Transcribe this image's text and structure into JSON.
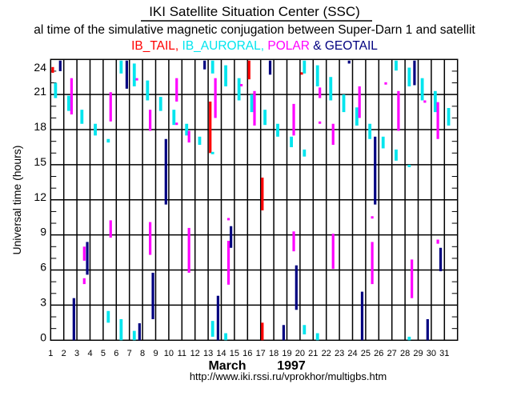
{
  "header": {
    "title": "IKI Satellite Situation Center (SSC)",
    "subtitle": "al time of the simulative magnetic conjugation between Super-Darn 1 and satellit"
  },
  "legend": [
    {
      "label": "IB_TAIL,",
      "color": "#ff0000"
    },
    {
      "label": "IB_AURORAL,",
      "color": "#00e5ee"
    },
    {
      "label": "POLAR",
      "color": "#ff00ff"
    },
    {
      "label": "& GEOTAIL",
      "color": "#000080"
    }
  ],
  "footer": {
    "month": "March",
    "year": "1997",
    "url": "http://www.iki.rssi.ru/vprokhor/multigbs.htm"
  },
  "chart_data": {
    "type": "bar",
    "subtype": "floating-range",
    "ylabel": "Universal time  (hours)",
    "xlabel": "March 1997",
    "xlim": [
      1,
      32
    ],
    "ylim": [
      0,
      24
    ],
    "x_ticks": [
      "1",
      "2",
      "3",
      "4",
      "5",
      "6",
      "7",
      "8",
      "9",
      "10",
      "11",
      "12",
      "13",
      "14",
      "15",
      "16",
      "17",
      "18",
      "19",
      "20",
      "21",
      "22",
      "23",
      "24",
      "25",
      "26",
      "27",
      "28",
      "29",
      "30",
      "31"
    ],
    "y_ticks": [
      "0",
      "3",
      "6",
      "9",
      "12",
      "15",
      "18",
      "21",
      "24"
    ],
    "grid": true,
    "series": [
      {
        "name": "IB_TAIL",
        "color": "#ff0000",
        "segments": [
          [
            1.16,
            22.86,
            23.35
          ],
          [
            13.16,
            16.0,
            20.4
          ],
          [
            16.12,
            22.3,
            23.9
          ],
          [
            17.13,
            11.1,
            13.9
          ],
          [
            17.13,
            0,
            1.5
          ],
          [
            20.13,
            22.7,
            22.9
          ]
        ]
      },
      {
        "name": "IB_AURORAL",
        "color": "#00e5ee",
        "segments": [
          [
            1.37,
            20.7,
            22.0
          ],
          [
            2.38,
            19.6,
            20.9
          ],
          [
            3.38,
            18.5,
            19.7
          ],
          [
            4.4,
            17.5,
            18.5
          ],
          [
            5.39,
            16.9,
            17.2
          ],
          [
            5.39,
            1.5,
            2.5
          ],
          [
            6.37,
            22.8,
            23.9
          ],
          [
            6.37,
            0,
            1.8
          ],
          [
            7.37,
            21.7,
            23.65
          ],
          [
            7.37,
            0,
            0.8
          ],
          [
            8.38,
            20.5,
            22.2
          ],
          [
            9.38,
            19.6,
            20.8
          ],
          [
            10.39,
            18.4,
            19.7
          ],
          [
            11.36,
            17.5,
            18.5
          ],
          [
            12.35,
            16.7,
            17.4
          ],
          [
            13.34,
            22.8,
            23.9
          ],
          [
            13.34,
            15.9,
            16.1
          ],
          [
            13.34,
            0.3,
            1.65
          ],
          [
            14.34,
            21.7,
            23.5
          ],
          [
            14.34,
            0,
            0.6
          ],
          [
            15.35,
            20.5,
            22.4
          ],
          [
            16.32,
            19.5,
            21.0
          ],
          [
            17.33,
            18.4,
            19.7
          ],
          [
            18.3,
            17.4,
            18.5
          ],
          [
            19.34,
            16.5,
            17.4
          ],
          [
            20.33,
            22.8,
            23.9
          ],
          [
            20.33,
            15.7,
            16.3
          ],
          [
            20.33,
            0.5,
            1.3
          ],
          [
            21.33,
            21.7,
            23.5
          ],
          [
            21.33,
            0,
            0.6
          ],
          [
            22.34,
            20.5,
            22.5
          ],
          [
            23.33,
            19.5,
            21.0
          ],
          [
            24.33,
            18.35,
            19.9
          ],
          [
            25.32,
            17.2,
            18.5
          ],
          [
            26.33,
            16.4,
            17.4
          ],
          [
            27.32,
            23.05,
            23.9
          ],
          [
            27.32,
            15.35,
            16.3
          ],
          [
            28.32,
            21.7,
            23.3
          ],
          [
            28.32,
            14.8,
            15.0
          ],
          [
            28.32,
            0,
            0.3
          ],
          [
            29.31,
            20.5,
            22.4
          ],
          [
            30.3,
            19.5,
            21.3
          ],
          [
            31.32,
            18.35,
            19.85
          ]
        ]
      },
      {
        "name": "POLAR",
        "color": "#ff00ff",
        "segments": [
          [
            2.59,
            19.3,
            22.4
          ],
          [
            3.56,
            6.8,
            8.0
          ],
          [
            3.56,
            4.8,
            5.3
          ],
          [
            5.57,
            18.7,
            21.2
          ],
          [
            5.57,
            8.77,
            10.25
          ],
          [
            7.57,
            22.2,
            22.4
          ],
          [
            8.58,
            17.9,
            19.7
          ],
          [
            8.58,
            7.3,
            10.1
          ],
          [
            10.6,
            20.4,
            22.4
          ],
          [
            10.6,
            18.4,
            18.6
          ],
          [
            11.54,
            16.9,
            17.9
          ],
          [
            11.54,
            5.77,
            9.6
          ],
          [
            13.55,
            19.0,
            22.4
          ],
          [
            14.55,
            10.25,
            10.45
          ],
          [
            14.55,
            4.75,
            8.5
          ],
          [
            15.53,
            21.7,
            21.9
          ],
          [
            16.53,
            18.35,
            21.3
          ],
          [
            19.52,
            17.5,
            20.2
          ],
          [
            19.52,
            7.6,
            9.3
          ],
          [
            21.51,
            20.7,
            21.6
          ],
          [
            21.51,
            18.5,
            18.7
          ],
          [
            22.52,
            16.7,
            18.5
          ],
          [
            22.52,
            6.1,
            9.1
          ],
          [
            24.53,
            19.0,
            21.7
          ],
          [
            25.5,
            10.4,
            10.6
          ],
          [
            25.5,
            4.8,
            8.4
          ],
          [
            26.53,
            21.85,
            22.05
          ],
          [
            27.5,
            17.9,
            21.3
          ],
          [
            28.52,
            3.6,
            6.9
          ],
          [
            29.51,
            20.3,
            20.5
          ],
          [
            30.5,
            17.2,
            20.35
          ],
          [
            30.5,
            8.25,
            8.6
          ]
        ]
      },
      {
        "name": "GEOTAIL",
        "color": "#000080",
        "segments": [
          [
            1.73,
            23.0,
            23.9
          ],
          [
            2.77,
            0,
            3.6
          ],
          [
            3.79,
            5.6,
            8.4
          ],
          [
            6.8,
            21.5,
            23.9
          ],
          [
            7.77,
            0,
            1.45
          ],
          [
            8.79,
            1.8,
            5.77
          ],
          [
            9.78,
            11.6,
            17.2
          ],
          [
            12.73,
            23.15,
            23.9
          ],
          [
            13.75,
            0,
            3.8
          ],
          [
            14.74,
            7.9,
            9.75
          ],
          [
            17.72,
            22.7,
            23.9
          ],
          [
            18.75,
            0,
            1.3
          ],
          [
            19.72,
            2.6,
            6.4
          ],
          [
            23.74,
            23.65,
            23.9
          ],
          [
            24.73,
            0,
            4.15
          ],
          [
            25.72,
            11.6,
            17.4
          ],
          [
            28.72,
            21.8,
            23.9
          ],
          [
            29.72,
            0,
            1.8
          ],
          [
            30.71,
            5.9,
            7.9
          ]
        ]
      }
    ]
  }
}
